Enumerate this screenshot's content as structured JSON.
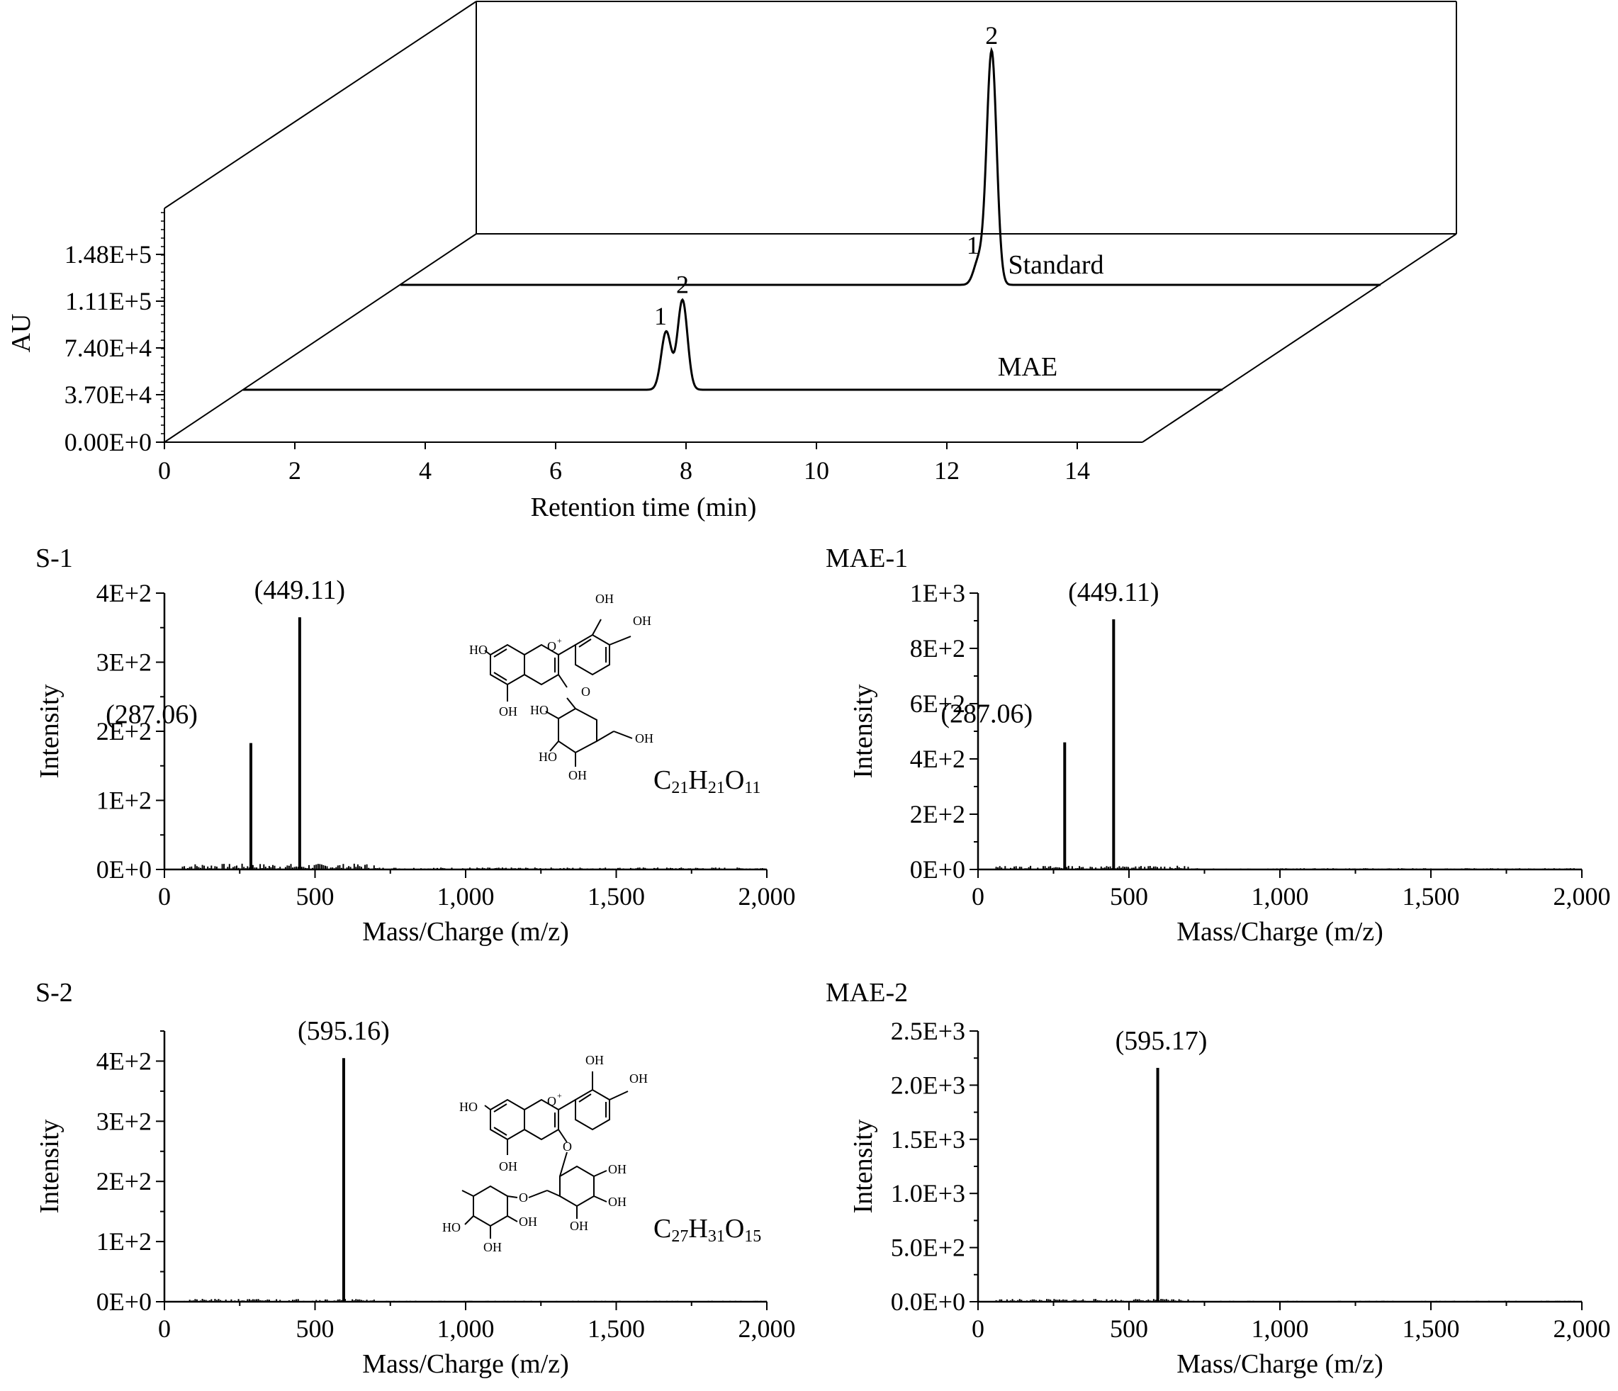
{
  "chart_data": [
    {
      "id": "chrom",
      "type": "line",
      "style": "3d-stacked",
      "xlabel": "Retention time (min)",
      "ylabel": "AU",
      "xlim": [
        0,
        15
      ],
      "ylim": [
        0,
        150000
      ],
      "xticks": [
        0,
        2,
        4,
        6,
        8,
        10,
        12,
        14
      ],
      "yticks": [
        "0.00E+0",
        "3.70E+4",
        "7.40E+4",
        "1.11E+5",
        "1.48E+5"
      ],
      "series": [
        {
          "name": "Standard",
          "peaks": [
            {
              "label": "1",
              "x": 8.9,
              "y": 19000
            },
            {
              "label": "2",
              "x": 9.1,
              "y": 185000
            }
          ]
        },
        {
          "name": "MAE",
          "peaks": [
            {
              "label": "1",
              "x": 6.5,
              "y": 46000
            },
            {
              "label": "2",
              "x": 6.75,
              "y": 71000
            }
          ]
        }
      ]
    },
    {
      "id": "s1",
      "type": "bar",
      "title": "S-1",
      "xlabel": "Mass/Charge (m/z)",
      "ylabel": "Intensity",
      "xlim": [
        0,
        2000
      ],
      "ylim": [
        0,
        400
      ],
      "xticks": [
        "0",
        "500",
        "1,000",
        "1,500",
        "2,000"
      ],
      "yticks": [
        "0E+0",
        "1E+2",
        "2E+2",
        "3E+2",
        "4E+2"
      ],
      "peaks": [
        {
          "x": 287.06,
          "y": 183,
          "label": "(287.06)"
        },
        {
          "x": 449.11,
          "y": 365,
          "label": "(449.11)"
        }
      ],
      "formula": {
        "base": "C",
        "parts": [
          [
            "C",
            "21"
          ],
          [
            "H",
            "21"
          ],
          [
            "O",
            "11"
          ]
        ]
      }
    },
    {
      "id": "mae1",
      "type": "bar",
      "title": "MAE-1",
      "xlabel": "Mass/Charge (m/z)",
      "ylabel": "Intensity",
      "xlim": [
        0,
        2000
      ],
      "ylim": [
        0,
        1000
      ],
      "xticks": [
        "0",
        "500",
        "1,000",
        "1,500",
        "2,000"
      ],
      "yticks": [
        "0E+0",
        "2E+2",
        "4E+2",
        "6E+2",
        "8E+2",
        "1E+3"
      ],
      "peaks": [
        {
          "x": 287.06,
          "y": 460,
          "label": "(287.06)"
        },
        {
          "x": 449.11,
          "y": 905,
          "label": "(449.11)"
        }
      ]
    },
    {
      "id": "s2",
      "type": "bar",
      "title": "S-2",
      "xlabel": "Mass/Charge (m/z)",
      "ylabel": "Intensity",
      "xlim": [
        0,
        2000
      ],
      "ylim": [
        0,
        450
      ],
      "xticks": [
        "0",
        "500",
        "1,000",
        "1,500",
        "2,000"
      ],
      "yticks": [
        "0E+0",
        "1E+2",
        "2E+2",
        "3E+2",
        "4E+2"
      ],
      "peaks": [
        {
          "x": 595.16,
          "y": 405,
          "label": "(595.16)"
        }
      ],
      "formula": {
        "base": "C",
        "parts": [
          [
            "C",
            "27"
          ],
          [
            "H",
            "31"
          ],
          [
            "O",
            "15"
          ]
        ]
      }
    },
    {
      "id": "mae2",
      "type": "bar",
      "title": "MAE-2",
      "xlabel": "Mass/Charge (m/z)",
      "ylabel": "Intensity",
      "xlim": [
        0,
        2000
      ],
      "ylim": [
        0,
        2500
      ],
      "xticks": [
        "0",
        "500",
        "1,000",
        "1,500",
        "2,000"
      ],
      "yticks": [
        "0.0E+0",
        "5.0E+2",
        "1.0E+3",
        "1.5E+3",
        "2.0E+3",
        "2.5E+3"
      ],
      "peaks": [
        {
          "x": 595.17,
          "y": 2160,
          "label": "(595.17)"
        }
      ]
    }
  ],
  "structure_labels": {
    "oh": "OH",
    "ho": "HO",
    "o_plus": "O",
    "o": "O",
    "plus": "+"
  }
}
